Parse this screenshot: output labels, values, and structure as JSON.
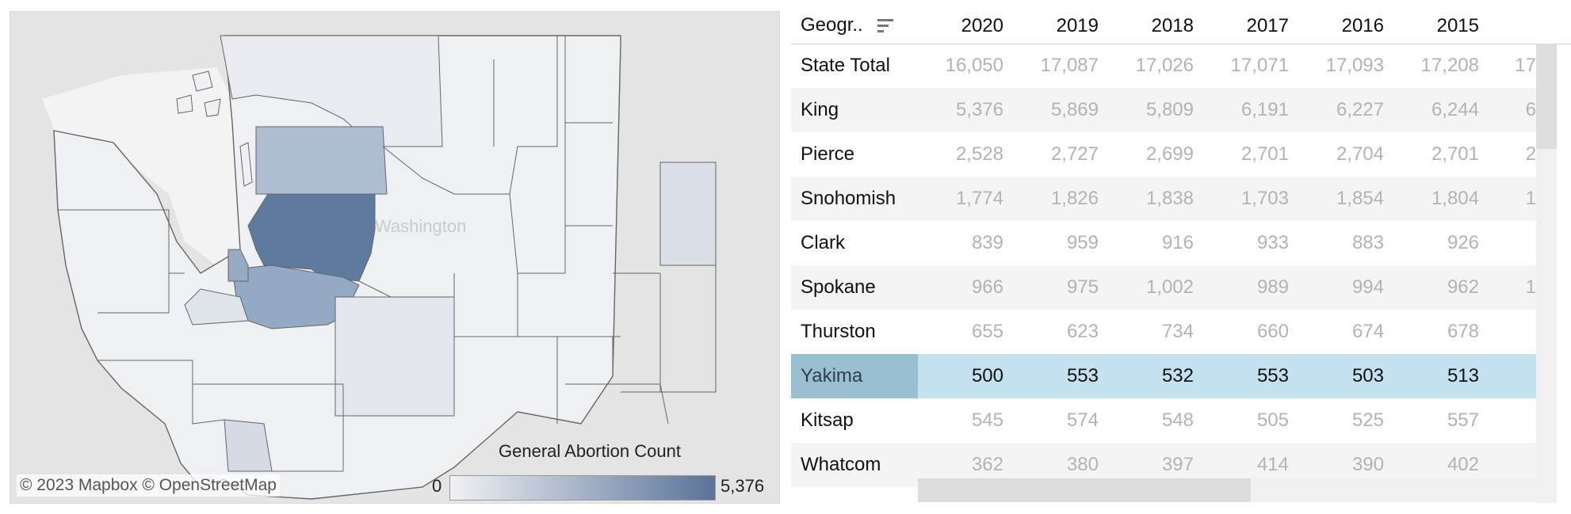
{
  "map": {
    "attribution": "© 2023 Mapbox  © OpenStreetMap",
    "state_label": "Washington",
    "legend": {
      "title": "General Abortion Count",
      "min": "0",
      "max": "5,376",
      "color_low": "#f0f1f4",
      "color_high": "#5a7399"
    }
  },
  "table": {
    "header": {
      "geo": "Geogr..",
      "sort_icon": "sort-descending-icon"
    },
    "years": [
      "2020",
      "2019",
      "2018",
      "2017",
      "2016",
      "2015"
    ],
    "rows": [
      {
        "name": "State Total",
        "values": [
          "16,050",
          "17,087",
          "17,026",
          "17,071",
          "17,093",
          "17,208"
        ],
        "partial": "17"
      },
      {
        "name": "King",
        "values": [
          "5,376",
          "5,869",
          "5,809",
          "6,191",
          "6,227",
          "6,244"
        ],
        "partial": "6"
      },
      {
        "name": "Pierce",
        "values": [
          "2,528",
          "2,727",
          "2,699",
          "2,701",
          "2,704",
          "2,701"
        ],
        "partial": "2"
      },
      {
        "name": "Snohomish",
        "values": [
          "1,774",
          "1,826",
          "1,838",
          "1,703",
          "1,854",
          "1,804"
        ],
        "partial": "1"
      },
      {
        "name": "Clark",
        "values": [
          "839",
          "959",
          "916",
          "933",
          "883",
          "926"
        ],
        "partial": ""
      },
      {
        "name": "Spokane",
        "values": [
          "966",
          "975",
          "1,002",
          "989",
          "994",
          "962"
        ],
        "partial": "1"
      },
      {
        "name": "Thurston",
        "values": [
          "655",
          "623",
          "734",
          "660",
          "674",
          "678"
        ],
        "partial": ""
      },
      {
        "name": "Yakima",
        "values": [
          "500",
          "553",
          "532",
          "553",
          "503",
          "513"
        ],
        "partial": ""
      },
      {
        "name": "Kitsap",
        "values": [
          "545",
          "574",
          "548",
          "505",
          "525",
          "557"
        ],
        "partial": ""
      },
      {
        "name": "Whatcom",
        "values": [
          "362",
          "380",
          "397",
          "414",
          "390",
          "402"
        ],
        "partial": ""
      }
    ],
    "selected_row": "Yakima"
  }
}
